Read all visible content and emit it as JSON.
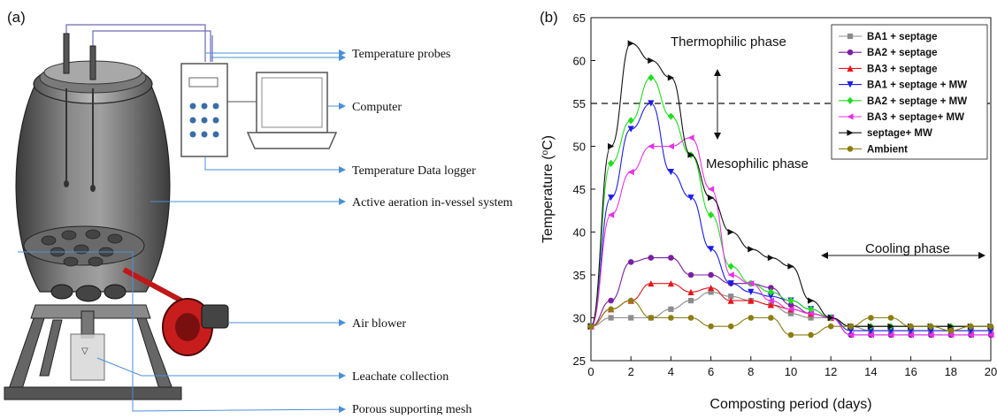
{
  "figure": {
    "panel_a_label": "(a)",
    "panel_b_label": "(b)"
  },
  "diagram": {
    "labels": {
      "probes": "Temperature probes",
      "computer": "Computer",
      "logger": "Temperature Data logger",
      "vessel": "Active aeration in-vessel system",
      "blower": "Air blower",
      "leachate": "Leachate collection",
      "mesh": "Porous supporting mesh"
    }
  },
  "chart_data": {
    "type": "line",
    "xlabel": "Composting period (days)",
    "ylabel_main": "Temperature (",
    "ylabel_sup": "o",
    "ylabel_tail": "C)",
    "xlim": [
      0,
      20
    ],
    "ylim": [
      25,
      65
    ],
    "xticks": [
      0,
      2,
      4,
      6,
      8,
      10,
      12,
      14,
      16,
      18,
      20
    ],
    "yticks": [
      25,
      30,
      35,
      40,
      45,
      50,
      55,
      60,
      65
    ],
    "reference_line": {
      "y": 55,
      "style": "dashed"
    },
    "annotations": {
      "thermophilic": "Thermophilic phase",
      "mesophilic": "Mesophilic phase",
      "cooling": "Cooling phase"
    },
    "legend_position": "top-right",
    "series": [
      {
        "name": "BA1 + septage",
        "color": "#8c8c8c",
        "marker": "square",
        "x": [
          0,
          1,
          2,
          3,
          4,
          5,
          6,
          7,
          8,
          9,
          10,
          11,
          12,
          13,
          14,
          15,
          16,
          17,
          18,
          19,
          20
        ],
        "y": [
          29,
          30,
          30,
          30,
          31,
          32,
          33,
          32.5,
          32,
          31.5,
          30.5,
          30,
          30,
          29,
          28.5,
          28.5,
          28.5,
          28.5,
          28.5,
          28.5,
          28.5
        ]
      },
      {
        "name": "BA2 + septage",
        "color": "#7b1fa2",
        "marker": "circle",
        "x": [
          0,
          1,
          2,
          3,
          4,
          5,
          6,
          7,
          8,
          9,
          10,
          11,
          12,
          13,
          14,
          15,
          16,
          17,
          18,
          19,
          20
        ],
        "y": [
          29,
          32,
          36.5,
          37,
          37,
          35,
          35,
          34,
          34,
          33.5,
          31.5,
          30.5,
          30,
          28,
          28,
          28,
          28,
          28,
          28,
          28,
          28
        ]
      },
      {
        "name": "BA3 + septage",
        "color": "#e8141c",
        "marker": "triangle-up",
        "x": [
          0,
          1,
          2,
          3,
          4,
          5,
          6,
          7,
          8,
          9,
          10,
          11,
          12,
          13,
          14,
          15,
          16,
          17,
          18,
          19,
          20
        ],
        "y": [
          29,
          31,
          32,
          34,
          34,
          33,
          33.5,
          32,
          32,
          31.5,
          31,
          30.5,
          30,
          29,
          29,
          29,
          29,
          29,
          29,
          29,
          29
        ]
      },
      {
        "name": "BA1 + septage + MW",
        "color": "#1c1ce6",
        "marker": "triangle-down",
        "x": [
          0,
          1,
          2,
          3,
          4,
          5,
          6,
          7,
          8,
          9,
          10,
          11,
          12,
          13,
          14,
          15,
          16,
          17,
          18,
          19,
          20
        ],
        "y": [
          29,
          44,
          52,
          55,
          47,
          44,
          38,
          34,
          33,
          32.5,
          32,
          31,
          30,
          28.5,
          28.5,
          28.5,
          28.5,
          28.5,
          28.5,
          28.5,
          28.5
        ]
      },
      {
        "name": "BA2 + septage + MW",
        "color": "#22dd22",
        "marker": "diamond",
        "x": [
          0,
          1,
          2,
          3,
          4,
          5,
          6,
          7,
          8,
          9,
          10,
          11,
          12,
          13,
          14,
          15,
          16,
          17,
          18,
          19,
          20
        ],
        "y": [
          29,
          48,
          53,
          58,
          53.5,
          49,
          42,
          36,
          34,
          33,
          32,
          31,
          30,
          29,
          29,
          29,
          29,
          29,
          29,
          29,
          29
        ]
      },
      {
        "name": "BA3 + septage+ MW",
        "color": "#e632e6",
        "marker": "triangle-left",
        "x": [
          0,
          1,
          2,
          3,
          4,
          5,
          6,
          7,
          8,
          9,
          10,
          11,
          12,
          13,
          14,
          15,
          16,
          17,
          18,
          19,
          20
        ],
        "y": [
          29,
          42,
          47,
          50,
          50,
          51,
          45,
          35,
          34,
          32,
          31,
          30.5,
          30,
          28,
          28,
          28,
          28,
          28,
          28,
          28,
          28
        ]
      },
      {
        "name": "septage+ MW",
        "color": "#111111",
        "marker": "triangle-right",
        "x": [
          0,
          1,
          2,
          3,
          4,
          5,
          6,
          7,
          8,
          9,
          10,
          11,
          12,
          13,
          14,
          15,
          16,
          17,
          18,
          19,
          20
        ],
        "y": [
          29,
          50,
          62,
          60,
          58,
          49,
          44,
          40,
          38,
          37,
          36,
          32,
          30,
          29,
          29,
          29,
          29,
          29,
          29,
          29,
          29
        ]
      },
      {
        "name": "Ambient",
        "color": "#8b7d10",
        "marker": "circle",
        "x": [
          0,
          1,
          2,
          3,
          4,
          5,
          6,
          7,
          8,
          9,
          10,
          11,
          12,
          13,
          14,
          15,
          16,
          17,
          18,
          19,
          20
        ],
        "y": [
          29,
          31,
          32,
          30,
          30,
          30,
          29,
          29,
          30,
          30,
          28,
          28,
          29,
          29,
          30,
          30,
          29,
          29,
          28.5,
          29,
          29
        ]
      }
    ]
  }
}
